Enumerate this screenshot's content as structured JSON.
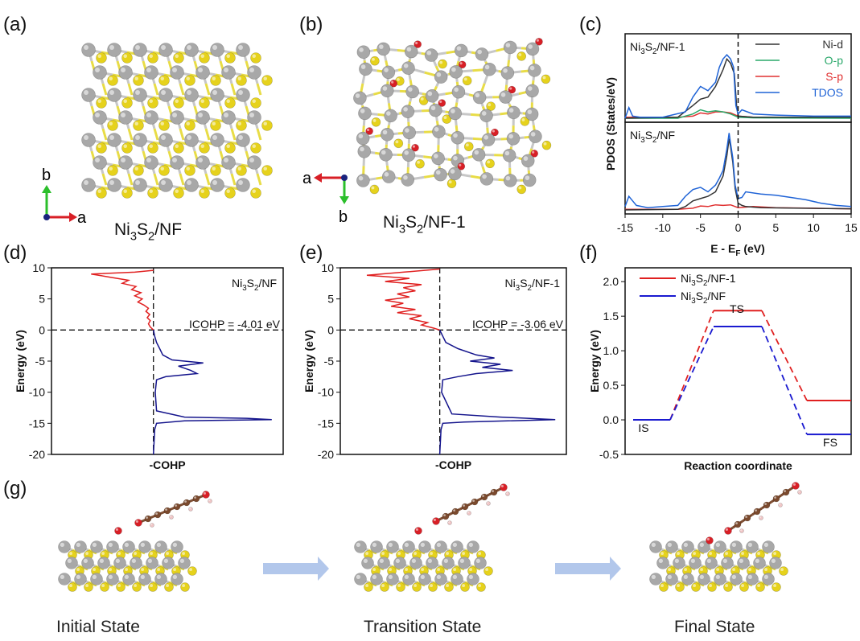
{
  "panel_labels": {
    "a": "(a)",
    "b": "(b)",
    "c": "(c)",
    "d": "(d)",
    "e": "(e)",
    "f": "(f)",
    "g": "(g)"
  },
  "panel_a": {
    "label": "Ni3S2/NF",
    "axis_vertical": "b",
    "axis_horizontal": "a"
  },
  "panel_b": {
    "label": "Ni3S2/NF-1",
    "axis_vertical": "b",
    "axis_horizontal": "a"
  },
  "colors": {
    "ni": "#a8a8a8",
    "s": "#e6d21c",
    "o": "#d81f26",
    "c": "#7b4a2e",
    "h": "#f0c6c6",
    "nid": "#333333",
    "op": "#2aa86a",
    "sp": "#e03030",
    "tdos": "#1f63d6",
    "red": "#e02020",
    "blue": "#1a1ad0",
    "arrow": "#9fb9e6"
  },
  "chart_data": [
    {
      "id": "c",
      "type": "line",
      "xlabel": "E - E_F (eV)",
      "ylabel": "PDOS (States/eV)",
      "xlim": [
        -15,
        15
      ],
      "xticks": [
        -15,
        -10,
        -5,
        0,
        5,
        10,
        15
      ],
      "legend": [
        "Ni-d",
        "O-p",
        "S-p",
        "TDOS"
      ],
      "legend_position": "top-right",
      "panels": [
        {
          "title": "Ni3S2/NF-1",
          "series": [
            {
              "name": "TDOS",
              "x": [
                -15,
                -14.5,
                -14,
                -13,
                -10,
                -7,
                -6,
                -5,
                -4,
                -3,
                -2.5,
                -2,
                -1.5,
                -1,
                -0.6,
                -0.3,
                0,
                0.5,
                2,
                5,
                10,
                15
              ],
              "y": [
                0,
                0.5,
                0.1,
                0.05,
                0.05,
                0.3,
                1.0,
                1.5,
                1.3,
                1.7,
                2.4,
                2.8,
                3.0,
                2.8,
                2.4,
                0.6,
                0.2,
                0.4,
                0.2,
                0.15,
                0.1,
                0.1
              ]
            },
            {
              "name": "Ni-d",
              "x": [
                -15,
                -8,
                -6,
                -5,
                -4,
                -3,
                -2,
                -1.5,
                -1,
                -0.5,
                -0.2,
                0,
                2,
                15
              ],
              "y": [
                0,
                0.05,
                0.6,
                0.9,
                1.0,
                1.5,
                2.3,
                2.8,
                2.6,
                2.1,
                0.6,
                0.1,
                0.05,
                0.05
              ]
            },
            {
              "name": "O-p",
              "x": [
                -15,
                -8,
                -6,
                -5,
                -4,
                -3,
                -2,
                -1,
                0,
                2,
                15
              ],
              "y": [
                0,
                0,
                0.2,
                0.4,
                0.3,
                0.35,
                0.3,
                0.2,
                0.05,
                0.02,
                0
              ]
            },
            {
              "name": "S-p",
              "x": [
                -15,
                -8,
                -6,
                -5,
                -4,
                -3,
                -2,
                -1,
                0,
                2,
                15
              ],
              "y": [
                0.05,
                0.05,
                0.1,
                0.25,
                0.2,
                0.3,
                0.3,
                0.25,
                0.1,
                0.05,
                0.05
              ]
            }
          ]
        },
        {
          "title": "Ni3S2/NF",
          "series": [
            {
              "name": "TDOS",
              "x": [
                -15,
                -14.5,
                -14,
                -13.5,
                -12,
                -10,
                -8,
                -7,
                -6,
                -5,
                -4,
                -3,
                -2.5,
                -2,
                -1.5,
                -1.2,
                -1,
                -0.7,
                -0.4,
                0,
                0.5,
                1,
                3,
                5,
                7,
                9,
                11,
                13,
                15
              ],
              "y": [
                0.3,
                1.2,
                0.8,
                0.4,
                0.2,
                0.3,
                0.4,
                1.2,
                1.8,
                2.0,
                1.6,
                2.2,
                2.8,
                3.5,
                5.4,
                6.8,
                5.9,
                4.6,
                2.2,
                1.0,
                1.1,
                1.6,
                1.4,
                1.3,
                1.1,
                0.9,
                0.6,
                0.4,
                0.3
              ]
            },
            {
              "name": "Ni-d",
              "x": [
                -15,
                -8,
                -7,
                -6,
                -5,
                -4,
                -3,
                -2.5,
                -2,
                -1.5,
                -1.2,
                -1,
                -0.7,
                -0.4,
                0,
                0.5,
                1,
                3,
                15
              ],
              "y": [
                0,
                0.05,
                0.3,
                0.8,
                1.0,
                1.2,
                1.6,
                2.3,
                3.0,
                4.8,
                6.3,
                5.6,
                4.2,
                1.9,
                0.6,
                0.4,
                0.3,
                0.2,
                0.1
              ]
            },
            {
              "name": "S-p",
              "x": [
                -15,
                -8,
                -6,
                -5,
                -4,
                -3,
                -2,
                -1,
                0,
                2,
                5,
                10,
                15
              ],
              "y": [
                0.05,
                0.05,
                0.15,
                0.35,
                0.3,
                0.45,
                0.4,
                0.45,
                0.2,
                0.3,
                0.2,
                0.15,
                0.1
              ]
            }
          ]
        }
      ]
    },
    {
      "id": "d",
      "type": "line",
      "label": "Ni3S2/NF",
      "annotation": "ICOHP = -4.01 eV",
      "xlabel": "-COHP",
      "ylabel": "Energy (eV)",
      "ylim": [
        -20,
        10
      ],
      "yticks": [
        -20,
        -15,
        -10,
        -5,
        0,
        5,
        10
      ],
      "series": [
        {
          "name": "antibonding",
          "y": [
            0,
            0.5,
            1,
            1.5,
            2,
            2.5,
            3,
            3.5,
            4,
            4.5,
            5,
            5.5,
            6,
            6.5,
            7,
            7.5,
            8,
            8.5,
            9,
            9.3,
            9.6
          ],
          "x": [
            0,
            -0.05,
            -0.08,
            -0.05,
            -0.1,
            -0.06,
            -0.12,
            -0.08,
            -0.15,
            -0.25,
            -0.18,
            -0.3,
            -0.2,
            -0.35,
            -0.28,
            -0.5,
            -0.4,
            -0.7,
            -1.0,
            -0.3,
            0
          ]
        },
        {
          "name": "bonding",
          "y": [
            0,
            -1,
            -2,
            -3,
            -4,
            -4.8,
            -5.3,
            -5.8,
            -6.5,
            -7.0,
            -7.5,
            -8,
            -10,
            -13,
            -14,
            -14.2,
            -14.4,
            -14.6,
            -15,
            -16,
            -20
          ],
          "x": [
            0,
            0.02,
            0.05,
            0.1,
            0.15,
            0.3,
            0.8,
            0.4,
            0.6,
            0.7,
            0.2,
            0.05,
            0.03,
            0.05,
            0.5,
            1.5,
            1.9,
            0.5,
            0.05,
            0.02,
            0
          ]
        }
      ]
    },
    {
      "id": "e",
      "type": "line",
      "label": "Ni3S2/NF-1",
      "annotation": "ICOHP = -3.06 eV",
      "xlabel": "-COHP",
      "ylabel": "Energy (eV)",
      "ylim": [
        -20,
        10
      ],
      "yticks": [
        -20,
        -15,
        -10,
        -5,
        0,
        5,
        10
      ],
      "series": [
        {
          "name": "antibonding",
          "y": [
            0,
            0.3,
            0.8,
            1.2,
            1.8,
            2.3,
            2.8,
            3.3,
            3.8,
            4.3,
            4.8,
            5.3,
            5.8,
            6.3,
            6.8,
            7.3,
            7.8,
            8.3,
            8.8,
            9.3,
            9.8
          ],
          "x": [
            0,
            -0.1,
            -0.3,
            -0.2,
            -0.5,
            -0.3,
            -0.7,
            -0.4,
            -0.8,
            -0.6,
            -0.9,
            -0.5,
            -0.7,
            -0.4,
            -0.6,
            -0.3,
            -0.9,
            -0.5,
            -1.2,
            -0.6,
            0
          ]
        },
        {
          "name": "bonding",
          "y": [
            0,
            -1,
            -2,
            -3,
            -4,
            -4.5,
            -5,
            -5.5,
            -6,
            -6.5,
            -7,
            -7.5,
            -8,
            -10,
            -13.5,
            -14,
            -14.4,
            -14.8,
            -15,
            -16,
            -20
          ],
          "x": [
            0,
            0.05,
            0.1,
            0.3,
            0.6,
            0.9,
            0.5,
            1.0,
            0.7,
            1.2,
            0.6,
            0.3,
            0.05,
            0.03,
            0.2,
            1.0,
            1.9,
            0.4,
            0.05,
            0.02,
            0
          ]
        }
      ]
    },
    {
      "id": "f",
      "type": "line",
      "xlabel": "Reaction coordinate",
      "ylabel": "Energy (eV)",
      "ylim": [
        -0.5,
        2.2
      ],
      "yticks": [
        -0.5,
        0.0,
        0.5,
        1.0,
        1.5,
        2.0
      ],
      "series": [
        {
          "name": "Ni3S2/NF-1",
          "values": [
            0.0,
            1.58,
            0.28
          ]
        },
        {
          "name": "Ni3S2/NF",
          "values": [
            0.0,
            1.35,
            -0.21
          ]
        }
      ],
      "states": [
        "IS",
        "TS",
        "FS"
      ]
    }
  ],
  "panel_g": {
    "states": [
      "Initial State",
      "Transition State",
      "Final State"
    ]
  }
}
